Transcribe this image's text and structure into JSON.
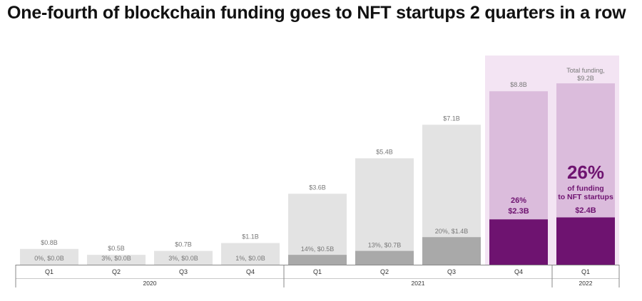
{
  "title": "One-fourth of blockchain funding goes to NFT startups 2 quarters in a row",
  "chart_data": {
    "type": "bar",
    "title": "One-fourth of blockchain funding goes to NFT startups 2 quarters in a row",
    "xlabel": "",
    "ylabel": "",
    "ylim": [
      0,
      10
    ],
    "grid": false,
    "legend": "none",
    "categories": [
      "Q1",
      "Q2",
      "Q3",
      "Q4",
      "Q1",
      "Q2",
      "Q3",
      "Q4",
      "Q1"
    ],
    "years": [
      {
        "label": "2020",
        "span": [
          0,
          3
        ]
      },
      {
        "label": "2021",
        "span": [
          4,
          7
        ]
      },
      {
        "label": "2022",
        "span": [
          8,
          8
        ]
      }
    ],
    "series": [
      {
        "values": [
          0.8,
          0.5,
          0.7,
          1.1,
          3.6,
          5.4,
          7.1,
          8.8,
          9.2
        ]
      },
      {
        "values": [
          0.0,
          0.0,
          0.0,
          0.0,
          0.5,
          0.7,
          1.4,
          2.3,
          2.4
        ]
      }
    ],
    "total_labels": [
      "$0.8B",
      "$0.5B",
      "$0.7B",
      "$1.1B",
      "$3.6B",
      "$5.4B",
      "$7.1B",
      "$8.8B"
    ],
    "nft_labels": [
      "0%, $0.0B",
      "3%, $0.0B",
      "3%, $0.0B",
      "1%, $0.0B",
      "14%, $0.5B",
      "13%, $0.7B",
      "20%, $1.4B"
    ],
    "highlight_index": [
      7,
      8
    ],
    "q4_2021_annotation": {
      "pct": "26%",
      "amount": "$2.3B"
    },
    "q1_2022_annotation": {
      "total_line1": "Total funding,",
      "total_line2": "$9.2B",
      "pct": "26%",
      "line1": "of funding",
      "line2": "to NFT startups",
      "amount": "$2.4B"
    },
    "colors": {
      "total_bar": "#e3e3e3",
      "nft_bar": "#a9a9a9",
      "highlight_background": "#f3e4f3",
      "highlight_total_bar": "#dbbcdc",
      "highlight_nft_bar": "#6e1370",
      "highlight_text": "#6e1370",
      "label_text": "#777777"
    }
  }
}
